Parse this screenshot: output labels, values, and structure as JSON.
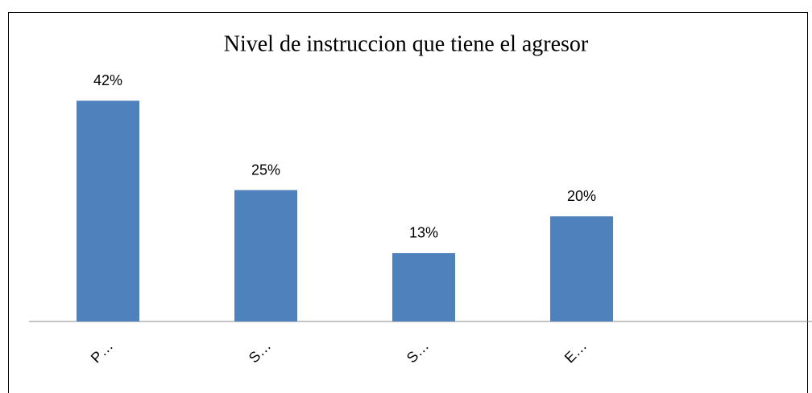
{
  "chart_data": {
    "type": "bar",
    "title": "Nivel de instruccion que tiene el agresor",
    "categories": [
      "P…",
      "S…",
      "S…",
      "E…"
    ],
    "values": [
      42,
      25,
      13,
      20
    ],
    "value_labels": [
      "42%",
      "25%",
      "13%",
      "20%"
    ],
    "color": "#4f81bd",
    "ylim": [
      0,
      50
    ]
  }
}
